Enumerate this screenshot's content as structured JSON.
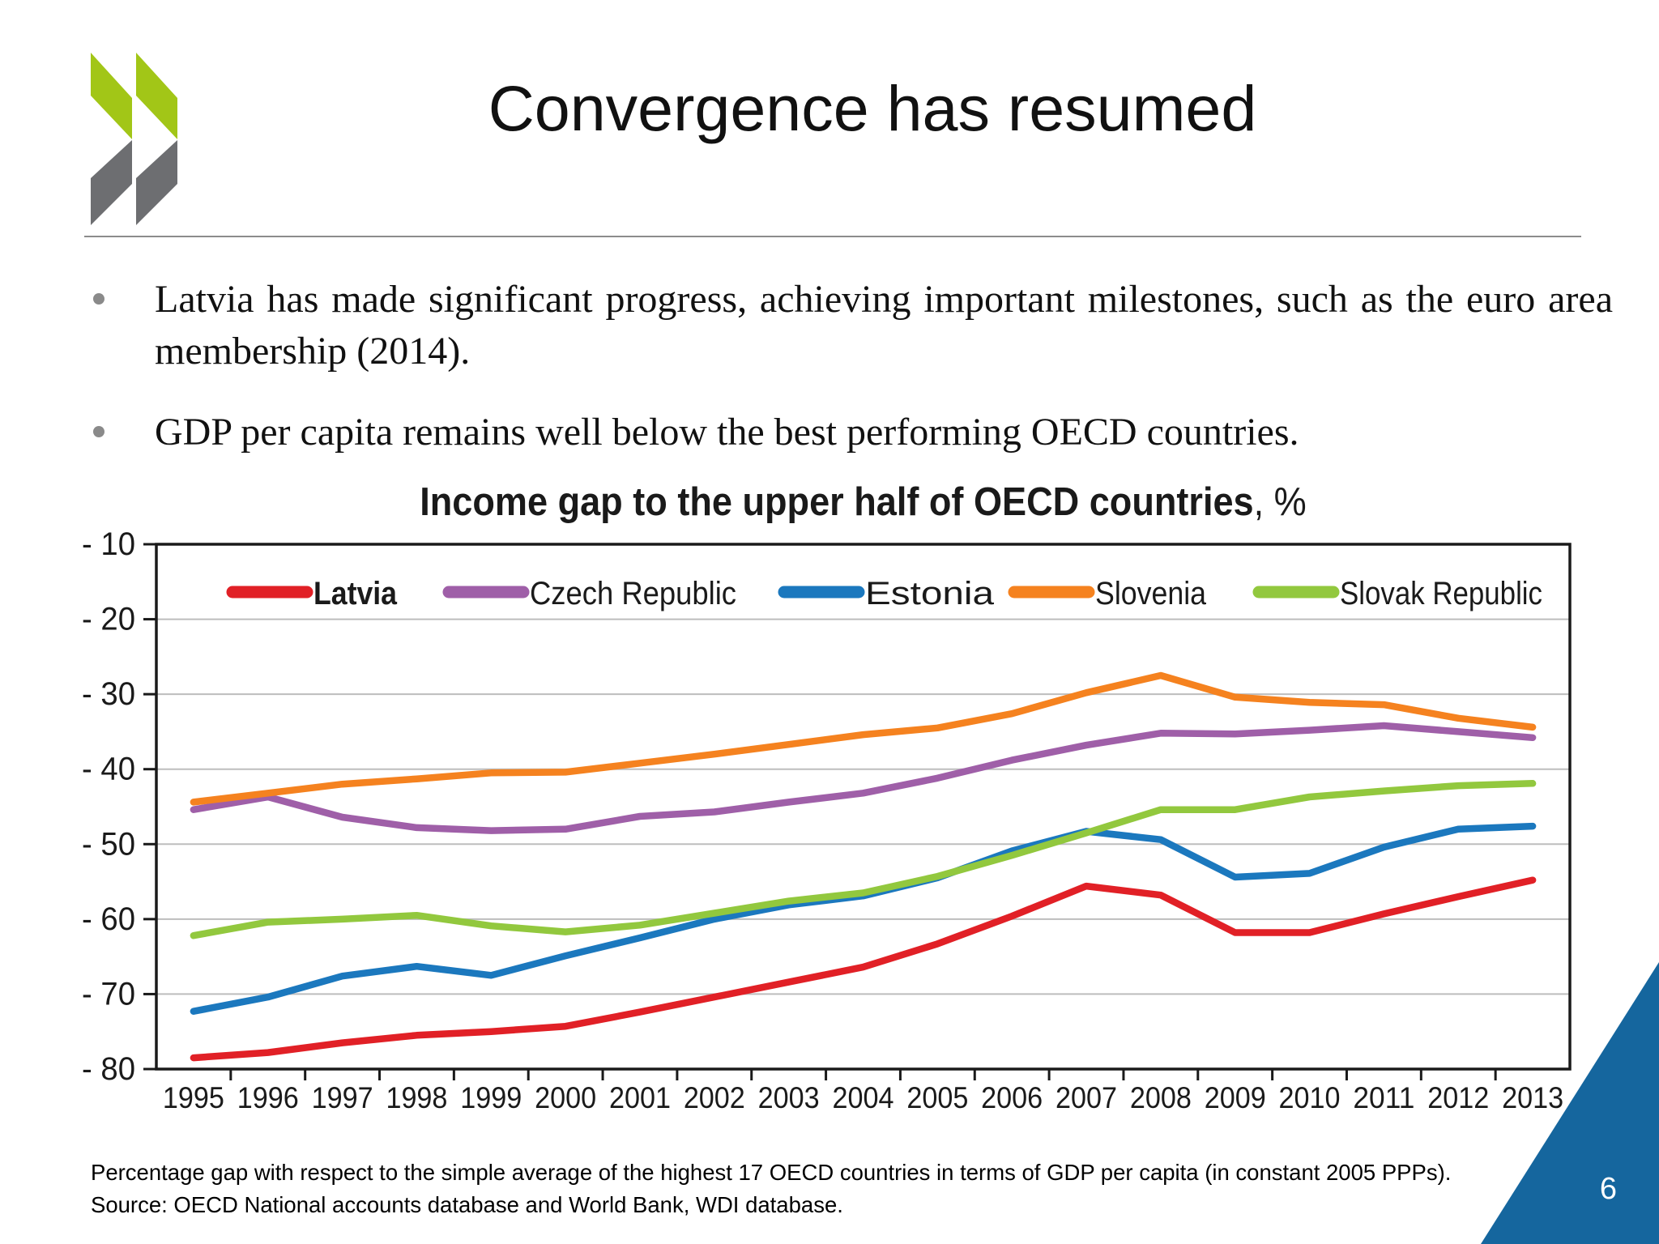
{
  "slide": {
    "title": "Convergence has resumed",
    "bullets": [
      "Latvia has made significant progress, achieving important milestones, such as the euro area membership (2014).",
      "GDP per capita remains well below the best performing OECD countries."
    ],
    "footnote_line1": "Percentage gap with respect to the simple average of the highest 17 OECD countries in terms of GDP per capita (in constant 2005 PPPs).",
    "footnote_line2": "Source: OECD National accounts database and World Bank, WDI database.",
    "page_number": "6"
  },
  "logo": {
    "name": "oecd-chevrons-logo",
    "green": "#a2c617",
    "gray": "#6d6e71"
  },
  "accent": {
    "corner_triangle_color": "#15669e"
  },
  "chart_data": {
    "type": "line",
    "title_main": "Income gap to the upper half of OECD countries",
    "title_suffix": ", %",
    "categories": [
      1995,
      1996,
      1997,
      1998,
      1999,
      2000,
      2001,
      2002,
      2003,
      2004,
      2005,
      2006,
      2007,
      2008,
      2009,
      2010,
      2011,
      2012,
      2013
    ],
    "xtick_labels": [
      "1995",
      "1996",
      "1997",
      "1998",
      "1999",
      "2000",
      "2001",
      "2002",
      "2003",
      "2004",
      "2005",
      "2006",
      "2007",
      "2008",
      "2009",
      "2010",
      "2011",
      "2012",
      "2013"
    ],
    "ylim": [
      -80,
      -10
    ],
    "ytick_labels": [
      "- 10",
      "- 20",
      "- 30",
      "- 40",
      "- 50",
      "- 60",
      "- 70",
      "- 80"
    ],
    "grid": true,
    "legend_position": "top-inside",
    "series": [
      {
        "name": "Latvia",
        "color": "#e12026",
        "bold_legend": true,
        "values": [
          -78.5,
          -77.8,
          -76.5,
          -75.5,
          -75.0,
          -74.3,
          -72.4,
          -70.4,
          -68.4,
          -66.4,
          -63.3,
          -59.6,
          -55.6,
          -56.8,
          -61.8,
          -61.8,
          -59.3,
          -57.0,
          -54.8
        ]
      },
      {
        "name": "Czech Republic",
        "color": "#9f5fa8",
        "bold_legend": false,
        "values": [
          -45.4,
          -43.7,
          -46.4,
          -47.8,
          -48.2,
          -48.0,
          -46.3,
          -45.7,
          -44.4,
          -43.2,
          -41.2,
          -38.8,
          -36.8,
          -35.2,
          -35.3,
          -34.8,
          -34.2,
          -35.0,
          -35.8
        ]
      },
      {
        "name": "Estonia",
        "color": "#1b78be",
        "bold_legend": false,
        "values": [
          -72.3,
          -70.4,
          -67.6,
          -66.3,
          -67.5,
          -64.9,
          -62.5,
          -60.0,
          -58.1,
          -56.9,
          -54.5,
          -50.9,
          -48.3,
          -49.4,
          -54.4,
          -53.9,
          -50.4,
          -48.0,
          -47.6
        ]
      },
      {
        "name": "Slovenia",
        "color": "#f5821f",
        "bold_legend": false,
        "values": [
          -44.4,
          -43.2,
          -42.0,
          -41.3,
          -40.5,
          -40.4,
          -39.2,
          -38.0,
          -36.7,
          -35.4,
          -34.5,
          -32.6,
          -29.8,
          -27.5,
          -30.4,
          -31.1,
          -31.4,
          -33.2,
          -34.4
        ]
      },
      {
        "name": "Slovak Republic",
        "color": "#92c83e",
        "bold_legend": false,
        "values": [
          -62.2,
          -60.4,
          -60.0,
          -59.5,
          -60.9,
          -61.7,
          -60.8,
          -59.2,
          -57.6,
          -56.5,
          -54.3,
          -51.5,
          -48.5,
          -45.4,
          -45.4,
          -43.7,
          -42.9,
          -42.2,
          -41.9
        ]
      }
    ]
  }
}
